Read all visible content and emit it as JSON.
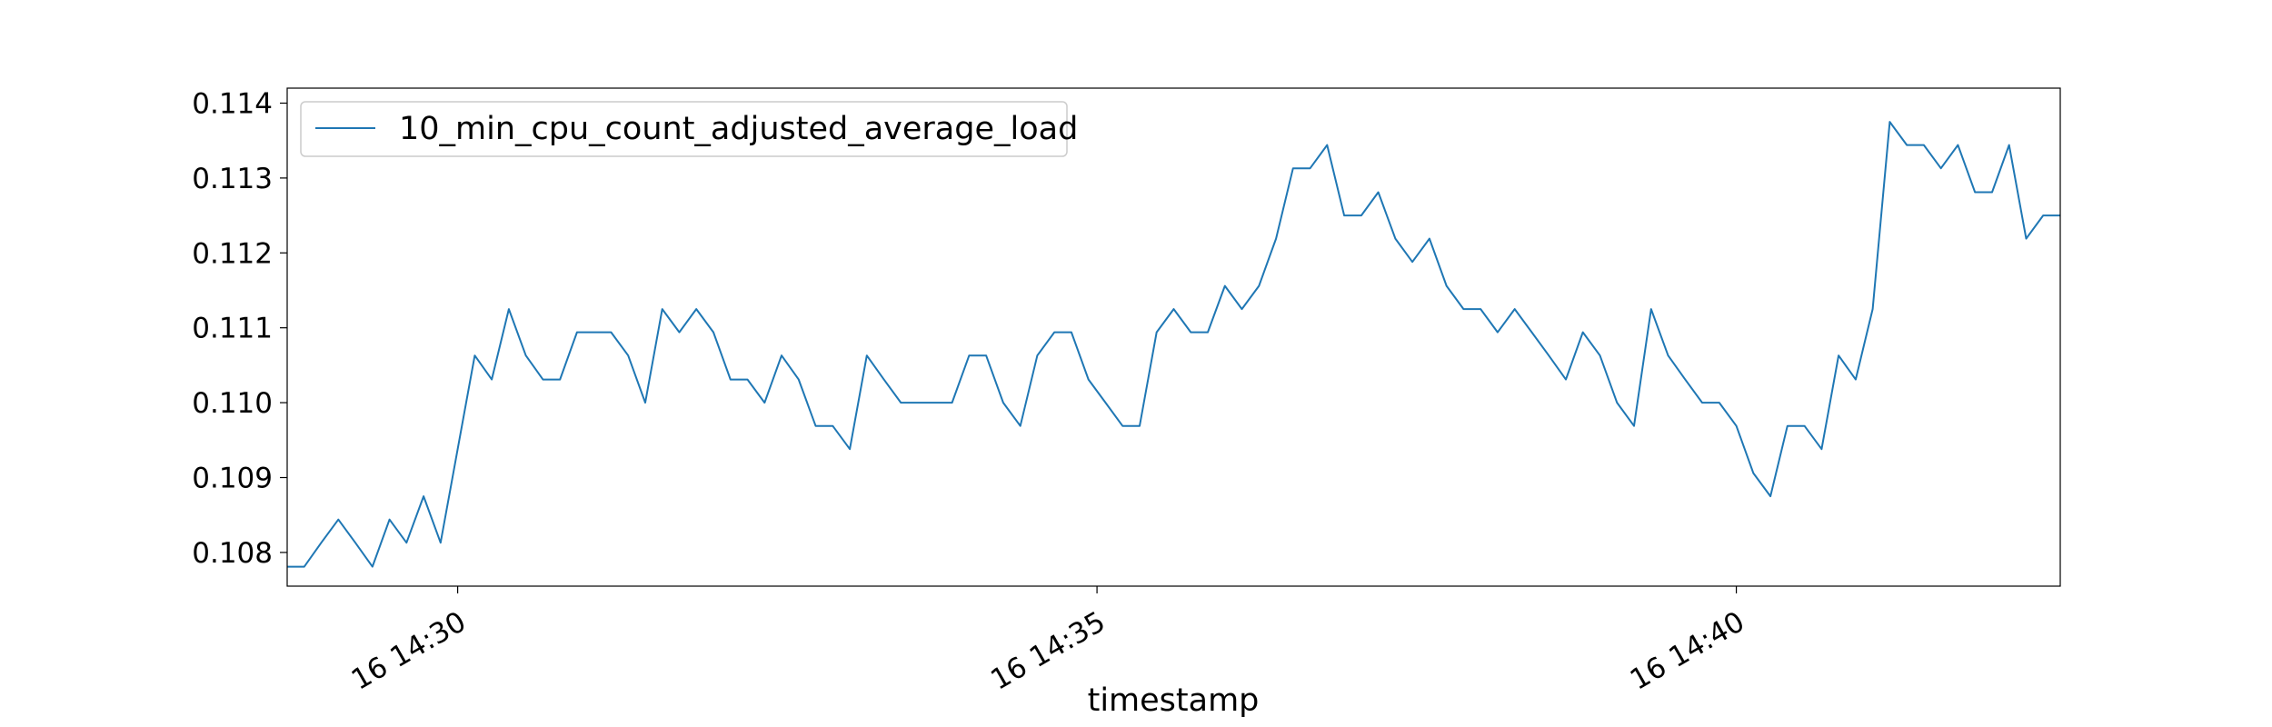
{
  "chart_data": {
    "type": "line",
    "title": "",
    "xlabel": "timestamp",
    "ylabel": "",
    "x_ticks": [
      "16 14:30",
      "16 14:35",
      "16 14:40"
    ],
    "y_ticks": [
      "0.108",
      "0.109",
      "0.110",
      "0.111",
      "0.112",
      "0.113",
      "0.114"
    ],
    "xlim": [
      "14:28:40",
      "14:42:32"
    ],
    "ylim": [
      0.10755,
      0.1142
    ],
    "grid": false,
    "legend_position": "top-left",
    "series": [
      {
        "name": "10_min_cpu_count_adjusted_average_load",
        "color": "#1f77b4",
        "x": [
          "14:28:40",
          "14:28:48",
          "14:28:56",
          "14:29:04",
          "14:29:12",
          "14:29:20",
          "14:29:28",
          "14:29:36",
          "14:29:44",
          "14:29:52",
          "14:30:00",
          "14:30:08",
          "14:30:16",
          "14:30:24",
          "14:30:32",
          "14:30:40",
          "14:30:48",
          "14:30:56",
          "14:31:04",
          "14:31:12",
          "14:31:20",
          "14:31:28",
          "14:31:36",
          "14:31:44",
          "14:31:52",
          "14:32:00",
          "14:32:08",
          "14:32:16",
          "14:32:24",
          "14:32:32",
          "14:32:40",
          "14:32:48",
          "14:32:56",
          "14:33:04",
          "14:33:12",
          "14:33:20",
          "14:33:28",
          "14:33:36",
          "14:33:44",
          "14:33:52",
          "14:34:00",
          "14:34:08",
          "14:34:16",
          "14:34:24",
          "14:34:32",
          "14:34:40",
          "14:34:48",
          "14:34:56",
          "14:35:04",
          "14:35:12",
          "14:35:20",
          "14:35:28",
          "14:35:36",
          "14:35:44",
          "14:35:52",
          "14:36:00",
          "14:36:08",
          "14:36:16",
          "14:36:24",
          "14:36:32",
          "14:36:40",
          "14:36:48",
          "14:36:56",
          "14:37:04",
          "14:37:12",
          "14:37:20",
          "14:37:28",
          "14:37:36",
          "14:37:44",
          "14:37:52",
          "14:38:00",
          "14:38:08",
          "14:38:16",
          "14:38:24",
          "14:38:32",
          "14:38:40",
          "14:38:48",
          "14:38:56",
          "14:39:04",
          "14:39:12",
          "14:39:20",
          "14:39:28",
          "14:39:36",
          "14:39:44",
          "14:39:52",
          "14:40:00",
          "14:40:08",
          "14:40:16",
          "14:40:24",
          "14:40:32",
          "14:40:40",
          "14:40:48",
          "14:40:56",
          "14:41:04",
          "14:41:12",
          "14:41:20",
          "14:41:28",
          "14:41:36",
          "14:41:44",
          "14:41:52",
          "14:42:00",
          "14:42:08",
          "14:42:16",
          "14:42:24",
          "14:42:32"
        ],
        "y": [
          0.10781,
          0.10781,
          0.10813,
          0.10844,
          0.10813,
          0.10781,
          0.10844,
          0.10813,
          0.10875,
          0.10813,
          0.10938,
          0.11063,
          0.11031,
          0.11125,
          0.11063,
          0.11031,
          0.11031,
          0.11094,
          0.11094,
          0.11094,
          0.11063,
          0.11,
          0.11125,
          0.11094,
          0.11125,
          0.11094,
          0.11031,
          0.11031,
          0.11,
          0.11063,
          0.11031,
          0.10969,
          0.10969,
          0.10938,
          0.11063,
          0.11031,
          0.11,
          0.11,
          0.11,
          0.11,
          0.11063,
          0.11063,
          0.11,
          0.10969,
          0.11063,
          0.11094,
          0.11094,
          0.11031,
          0.11,
          0.10969,
          0.10969,
          0.11094,
          0.11125,
          0.11094,
          0.11094,
          0.11156,
          0.11125,
          0.11156,
          0.11219,
          0.11313,
          0.11313,
          0.11344,
          0.1125,
          0.1125,
          0.11281,
          0.11219,
          0.11188,
          0.11219,
          0.11156,
          0.11125,
          0.11125,
          0.11094,
          0.11125,
          0.11094,
          0.11063,
          0.11031,
          0.11094,
          0.11063,
          0.11,
          0.10969,
          0.11125,
          0.11063,
          0.11031,
          0.11,
          0.11,
          0.10969,
          0.10906,
          0.10875,
          0.10969,
          0.10969,
          0.10938,
          0.11063,
          0.11031,
          0.11125,
          0.11375,
          0.11344,
          0.11344,
          0.11313,
          0.11344,
          0.11281,
          0.11281,
          0.11344,
          0.11219,
          0.1125,
          0.1125
        ]
      }
    ]
  }
}
